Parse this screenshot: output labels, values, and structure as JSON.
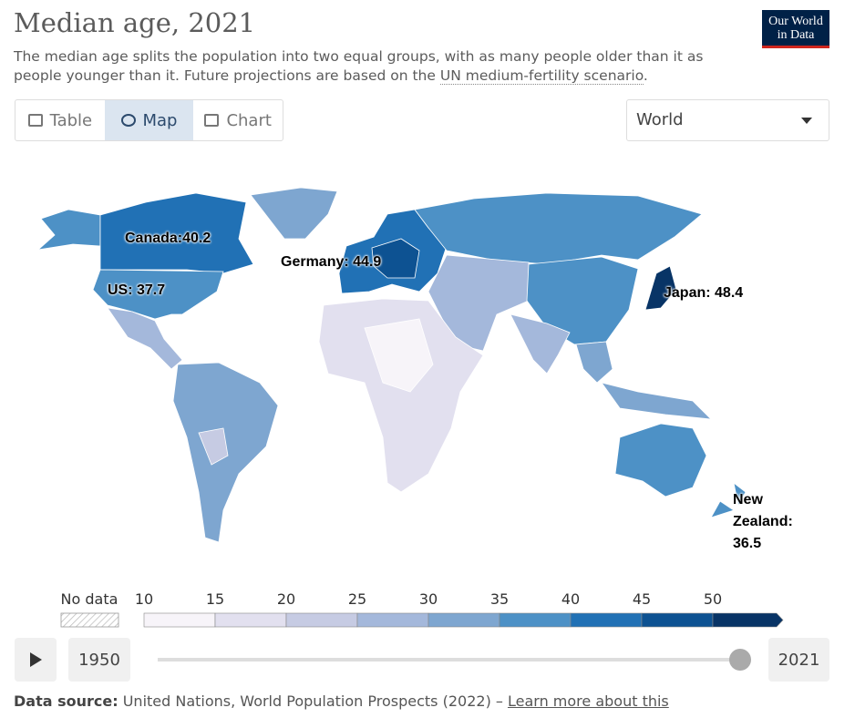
{
  "header": {
    "title": "Median age, 2021",
    "subtitle": "The median age splits the population into two equal groups, with as many people older than it as people younger than it. Future projections are based on the",
    "subtitle_link": "UN medium-fertility scenario",
    "subtitle_end": ".",
    "logo": [
      "Our World",
      "in Data"
    ]
  },
  "tabs": [
    {
      "label": "Table",
      "active": false
    },
    {
      "label": "Map",
      "active": true
    },
    {
      "label": "Chart",
      "active": false
    }
  ],
  "region_select": "World",
  "map": {
    "annotations": [
      "Canada:40.2",
      "Germany: 44.9",
      "US: 37.7",
      "Japan: 48.4",
      "New Zealand: 36.5"
    ]
  },
  "legend": {
    "no_data": "No data",
    "ticks": [
      10,
      15,
      20,
      25,
      30,
      35,
      40,
      45,
      50
    ],
    "colors": [
      "#f7f4f9",
      "#e2e0ef",
      "#c6cbe3",
      "#a4b8db",
      "#7ea6d0",
      "#4d91c6",
      "#2171b5",
      "#0d5292",
      "#083466"
    ]
  },
  "timeline": {
    "start": 1950,
    "end": 2021
  },
  "footer": {
    "label": "Data source:",
    "text": "United Nations, World Population Prospects (2022) –",
    "link": "Learn more about this"
  }
}
